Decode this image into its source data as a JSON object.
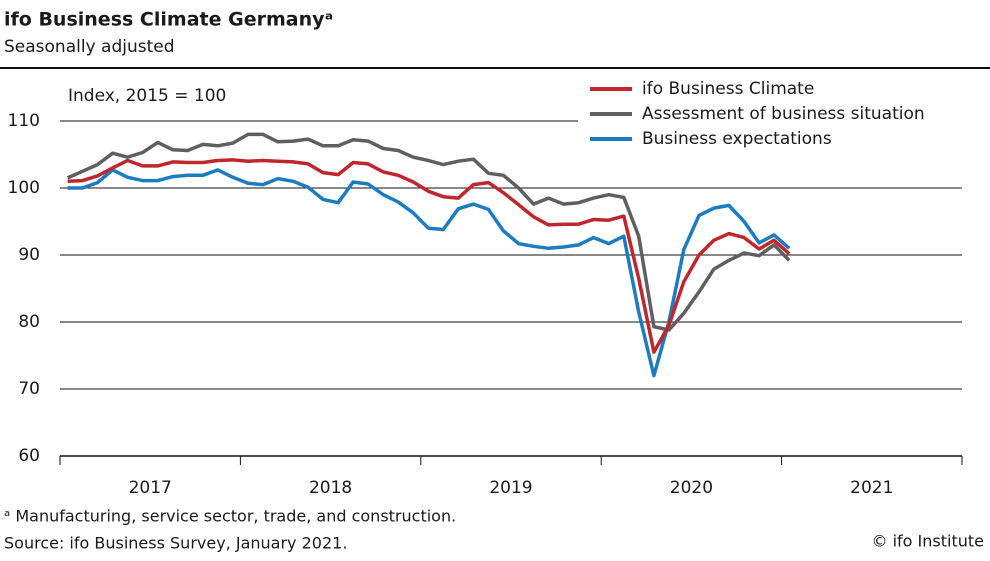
{
  "chart_data": {
    "type": "line",
    "title": "ifo Business Climate Germanyᵃ",
    "subtitle": "Seasonally adjusted",
    "y_label": "Index, 2015 = 100",
    "footnote": "ᵃ Manufacturing, service sector, trade, and construction.",
    "source": "Source: ifo Business Survey, January 2021.",
    "credit": "© ifo Institute",
    "x": [
      2017.042,
      2017.125,
      2017.208,
      2017.292,
      2017.375,
      2017.458,
      2017.542,
      2017.625,
      2017.708,
      2017.792,
      2017.875,
      2017.958,
      2018.042,
      2018.125,
      2018.208,
      2018.292,
      2018.375,
      2018.458,
      2018.542,
      2018.625,
      2018.708,
      2018.792,
      2018.875,
      2018.958,
      2019.042,
      2019.125,
      2019.208,
      2019.292,
      2019.375,
      2019.458,
      2019.542,
      2019.625,
      2019.708,
      2019.792,
      2019.875,
      2019.958,
      2020.042,
      2020.125,
      2020.208,
      2020.292,
      2020.375,
      2020.458,
      2020.542,
      2020.625,
      2020.708,
      2020.792,
      2020.875,
      2020.958,
      2021.042
    ],
    "series": [
      {
        "name": "ifo Business Climate",
        "color": "#c0272d",
        "values": [
          101.0,
          101.1,
          101.8,
          103.0,
          104.1,
          103.3,
          103.3,
          103.9,
          103.8,
          103.8,
          104.1,
          104.2,
          104.0,
          104.1,
          104.0,
          103.9,
          103.6,
          102.3,
          102.0,
          103.8,
          103.6,
          102.4,
          101.9,
          100.9,
          99.5,
          98.7,
          98.5,
          100.5,
          100.8,
          99.3,
          97.5,
          95.7,
          94.5,
          94.6,
          94.6,
          95.3,
          95.2,
          95.8,
          86.5,
          75.5,
          79.5,
          86.0,
          90.0,
          92.2,
          93.2,
          92.6,
          90.9,
          92.2,
          90.2
        ]
      },
      {
        "name": "Assessment of business situation",
        "color": "#5f5f5f",
        "values": [
          101.5,
          102.5,
          103.5,
          105.2,
          104.6,
          105.3,
          106.8,
          105.7,
          105.6,
          106.5,
          106.3,
          106.7,
          108.0,
          108.0,
          106.9,
          107.0,
          107.3,
          106.3,
          106.3,
          107.2,
          107.0,
          105.9,
          105.6,
          104.6,
          104.1,
          103.5,
          104.0,
          104.3,
          102.2,
          101.9,
          100.0,
          97.6,
          98.5,
          97.6,
          97.8,
          98.5,
          99.0,
          98.6,
          92.8,
          79.3,
          78.8,
          81.3,
          84.5,
          87.9,
          89.2,
          90.3,
          89.9,
          91.5,
          89.2
        ]
      },
      {
        "name": "Business expectations",
        "color": "#1b7cc2",
        "values": [
          100.0,
          100.0,
          100.8,
          102.7,
          101.6,
          101.1,
          101.1,
          101.7,
          101.9,
          101.9,
          102.7,
          101.6,
          100.7,
          100.5,
          101.4,
          101.0,
          100.1,
          98.3,
          97.8,
          100.9,
          100.6,
          99.0,
          97.9,
          96.3,
          94.0,
          93.8,
          96.9,
          97.6,
          96.8,
          93.6,
          91.7,
          91.3,
          91.0,
          91.2,
          91.5,
          92.6,
          91.7,
          92.8,
          81.5,
          72.0,
          80.0,
          90.8,
          95.9,
          97.0,
          97.4,
          95.0,
          91.8,
          93.0,
          91.0
        ]
      }
    ],
    "xlim": [
      2017,
      2022
    ],
    "xtick_marks": [
      2017,
      2018,
      2019,
      2020,
      2021,
      2022
    ],
    "xticks": [
      {
        "value": 2017.5,
        "label": "2017"
      },
      {
        "value": 2018.5,
        "label": "2018"
      },
      {
        "value": 2019.5,
        "label": "2019"
      },
      {
        "value": 2020.5,
        "label": "2020"
      },
      {
        "value": 2021.5,
        "label": "2021"
      }
    ],
    "ylim": [
      60,
      110
    ],
    "yticks": [
      60,
      70,
      80,
      90,
      100,
      110
    ],
    "grid": true,
    "legend": "top-right"
  }
}
